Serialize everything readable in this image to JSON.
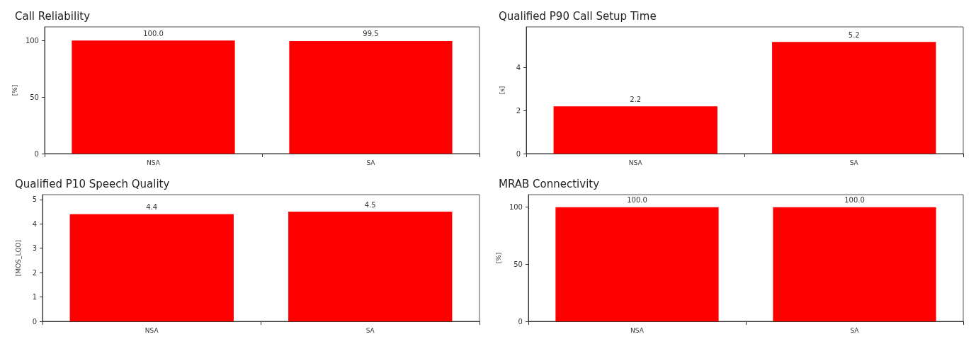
{
  "chart_data": [
    {
      "type": "bar",
      "title": "Call Reliability",
      "ylabel": "[%]",
      "categories": [
        "NSA",
        "SA"
      ],
      "values": [
        100.0,
        99.5
      ],
      "value_labels": [
        "100.0",
        "99.5"
      ],
      "color": "#ff0000",
      "ylim": [
        0,
        112
      ],
      "yticks": [
        0,
        50,
        100
      ],
      "grid": false
    },
    {
      "type": "bar",
      "title": "Qualified P90 Call Setup Time",
      "ylabel": "[s]",
      "categories": [
        "NSA",
        "SA"
      ],
      "values": [
        2.2,
        5.2
      ],
      "value_labels": [
        "2.2",
        "5.2"
      ],
      "color": "#ff0000",
      "ylim": [
        0,
        5.9
      ],
      "yticks": [
        0,
        2,
        4
      ],
      "grid": false
    },
    {
      "type": "bar",
      "title": "Qualified P10 Speech Quality",
      "ylabel": "[MOS_LQO]",
      "categories": [
        "NSA",
        "SA"
      ],
      "values": [
        4.4,
        4.5
      ],
      "value_labels": [
        "4.4",
        "4.5"
      ],
      "color": "#ff0000",
      "ylim": [
        0,
        5.2
      ],
      "yticks": [
        0,
        1,
        2,
        3,
        4,
        5
      ],
      "grid": false
    },
    {
      "type": "bar",
      "title": "MRAB Connectivity",
      "ylabel": "[%]",
      "categories": [
        "NSA",
        "SA"
      ],
      "values": [
        100.0,
        100.0
      ],
      "value_labels": [
        "100.0",
        "100.0"
      ],
      "color": "#ff0000",
      "ylim": [
        0,
        111
      ],
      "yticks": [
        0,
        50,
        100
      ],
      "grid": false
    }
  ]
}
